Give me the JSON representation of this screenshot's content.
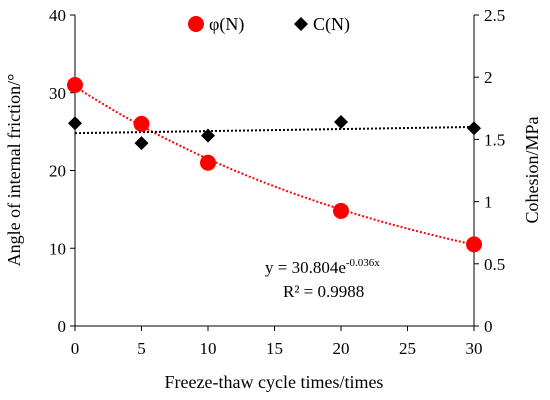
{
  "chart_data": {
    "type": "scatter",
    "xlabel": "Freeze-thaw cycle times/times",
    "ylabel_left": "Angle of internal friction/°",
    "ylabel_right": "Cohesion/MPa",
    "xlim": [
      0,
      30
    ],
    "ylim_left": [
      0,
      40
    ],
    "ylim_right": [
      0,
      2.5
    ],
    "xticks": [
      "0",
      "5",
      "10",
      "15",
      "20",
      "25",
      "30"
    ],
    "yticks_left": [
      "0",
      "10",
      "20",
      "30",
      "40"
    ],
    "yticks_right": [
      "0",
      "0.5",
      "1",
      "1.5",
      "2",
      "2.5"
    ],
    "grid": false,
    "legend_position": "top",
    "series": [
      {
        "name": "φ(N)",
        "axis": "left",
        "marker": "circle",
        "color": "#ff0000",
        "x": [
          0,
          5,
          10,
          20,
          30
        ],
        "y": [
          31.0,
          26.0,
          21.0,
          14.8,
          10.5
        ]
      },
      {
        "name": "C(N)",
        "axis": "right",
        "marker": "diamond",
        "color": "#000000",
        "x": [
          0,
          5,
          10,
          20,
          30
        ],
        "y": [
          1.63,
          1.47,
          1.53,
          1.64,
          1.59
        ]
      }
    ],
    "trendlines": [
      {
        "series": "φ(N)",
        "type": "exponential",
        "a": 30.804,
        "b": -0.036,
        "color": "#ff0000",
        "style": "dotted"
      },
      {
        "series": "C(N)",
        "type": "linear",
        "start": 1.55,
        "end": 1.6,
        "color": "#000000",
        "style": "dotted"
      }
    ],
    "annotation": {
      "equation_base": "y = 30.804e",
      "equation_exponent": "-0.036x",
      "r_squared": "R² = 0.9988"
    }
  }
}
